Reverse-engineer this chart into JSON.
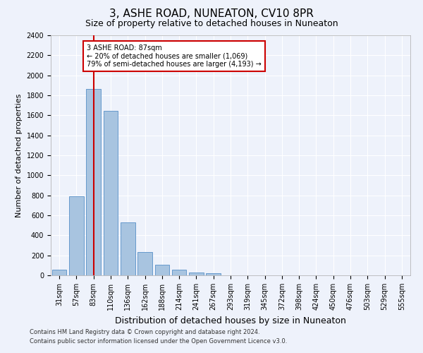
{
  "title": "3, ASHE ROAD, NUNEATON, CV10 8PR",
  "subtitle": "Size of property relative to detached houses in Nuneaton",
  "xlabel": "Distribution of detached houses by size in Nuneaton",
  "ylabel": "Number of detached properties",
  "footer_line1": "Contains HM Land Registry data © Crown copyright and database right 2024.",
  "footer_line2": "Contains public sector information licensed under the Open Government Licence v3.0.",
  "categories": [
    "31sqm",
    "57sqm",
    "83sqm",
    "110sqm",
    "136sqm",
    "162sqm",
    "188sqm",
    "214sqm",
    "241sqm",
    "267sqm",
    "293sqm",
    "319sqm",
    "345sqm",
    "372sqm",
    "398sqm",
    "424sqm",
    "450sqm",
    "476sqm",
    "503sqm",
    "529sqm",
    "555sqm"
  ],
  "values": [
    55,
    790,
    1865,
    1645,
    530,
    235,
    105,
    55,
    30,
    20,
    0,
    0,
    0,
    0,
    0,
    0,
    0,
    0,
    0,
    0,
    0
  ],
  "bar_color": "#a8c4e0",
  "bar_edge_color": "#6699cc",
  "highlight_bar_index": 2,
  "vline_color": "#cc0000",
  "annotation_text": "3 ASHE ROAD: 87sqm\n← 20% of detached houses are smaller (1,069)\n79% of semi-detached houses are larger (4,193) →",
  "annotation_box_facecolor": "#ffffff",
  "annotation_box_edgecolor": "#cc0000",
  "ylim": [
    0,
    2400
  ],
  "yticks": [
    0,
    200,
    400,
    600,
    800,
    1000,
    1200,
    1400,
    1600,
    1800,
    2000,
    2200,
    2400
  ],
  "background_color": "#eef2fb",
  "grid_color": "#ffffff",
  "title_fontsize": 11,
  "subtitle_fontsize": 9,
  "ylabel_fontsize": 8,
  "xlabel_fontsize": 9,
  "tick_fontsize": 7,
  "footer_fontsize": 6,
  "ann_fontsize": 7
}
